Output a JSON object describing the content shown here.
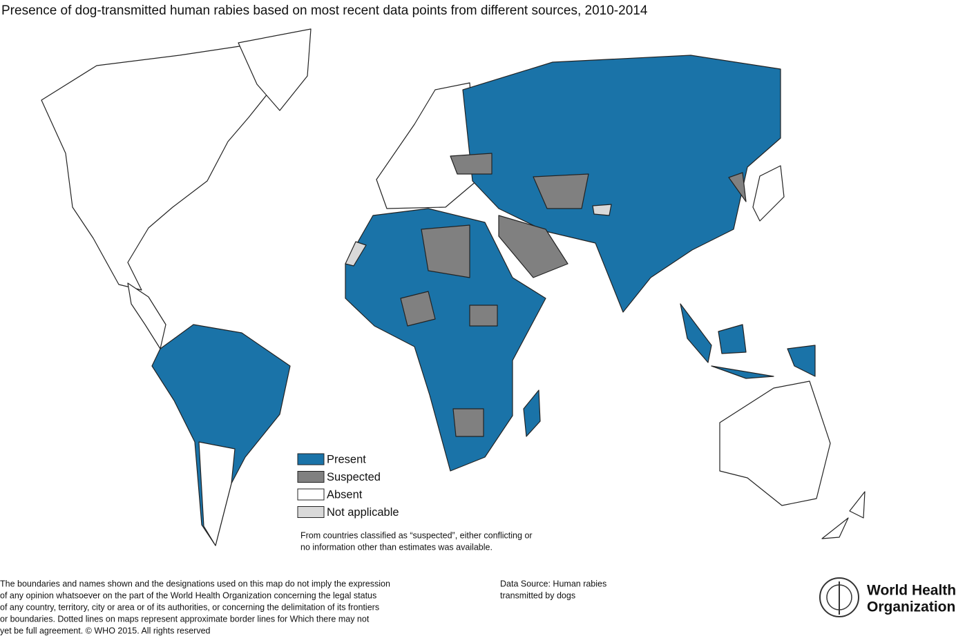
{
  "title": "Presence of dog-transmitted human rabies based on most recent data points from different sources, 2010-2014",
  "legend": [
    {
      "label": "Present",
      "color": "#1a73a8"
    },
    {
      "label": "Suspected",
      "color": "#808080"
    },
    {
      "label": "Absent",
      "color": "#ffffff"
    },
    {
      "label": "Not applicable",
      "color": "#d9d9d9"
    }
  ],
  "note": [
    "From countries classified as “suspected”, either conflicting or",
    "no information other than estimates was available."
  ],
  "disclaimer": [
    "The boundaries and names shown and the designations used on this map do not imply the expression",
    "of any opinion whatsoever on the part of the World Health Organization concerning the legal status",
    "of any country, territory, city or area or of its authorities, or concerning the delimitation of its frontiers",
    "or boundaries. Dotted lines on maps represent approximate border lines for Which there may not",
    "yet be full agreement. © WHO 2015. All rights reserved"
  ],
  "data_source": [
    "Data Source: Human rabies",
    "transmitted by dogs"
  ],
  "logo": [
    "World Health",
    "Organization"
  ]
}
